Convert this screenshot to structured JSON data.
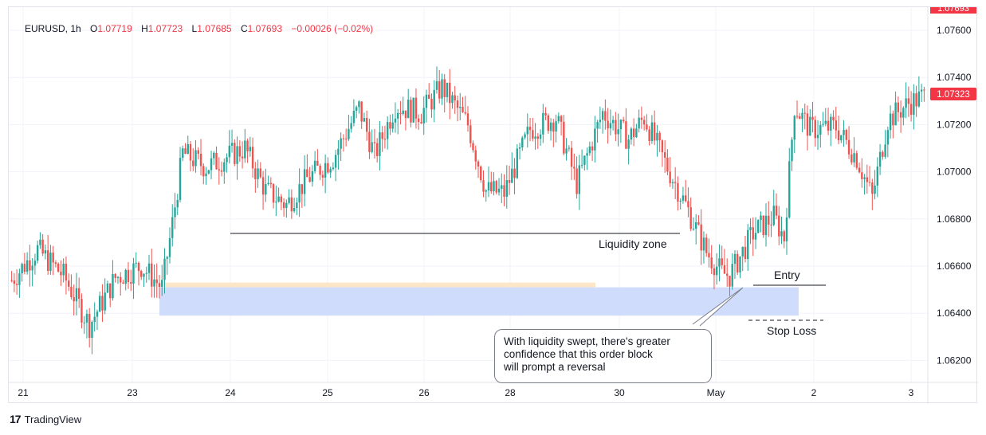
{
  "legend": {
    "symbol": "EURUSD",
    "interval": "1h",
    "o_label": "O",
    "o": "1.07719",
    "h_label": "H",
    "h": "1.07723",
    "l_label": "L",
    "l": "1.07685",
    "c_label": "C",
    "c": "1.07693",
    "change": "−0.00026 (−0.02%)"
  },
  "colors": {
    "up": "#26a69a",
    "down": "#ef5350",
    "zone_upper": "#fde5c7",
    "zone_lower": "#cfdcfb",
    "price_badge": "#f23645"
  },
  "annotations": {
    "liquidity_zone": "Liquidity zone",
    "entry": "Entry",
    "stop_loss": "Stop Loss",
    "callout": [
      "With liquidity swept, there's greater",
      "confidence that this order block",
      "will prompt a reversal"
    ]
  },
  "branding": {
    "logo_mark": "17",
    "name": "TradingView"
  },
  "chart_data": {
    "type": "candlestick",
    "title": "EURUSD, 1h",
    "ylim": [
      1.0618,
      1.0766
    ],
    "y_ticks": [
      "1.07600",
      "1.07400",
      "1.07200",
      "1.07000",
      "1.06800",
      "1.06600",
      "1.06400",
      "1.06200"
    ],
    "last_price": "1.07323",
    "top_badge": "1.07693",
    "x_ticks": [
      "21",
      "23",
      "24",
      "25",
      "26",
      "28",
      "30",
      "May",
      "2",
      "3"
    ],
    "levels": {
      "liquidity_zone": 1.0674,
      "order_block_upper": [
        1.0653,
        1.0651
      ],
      "order_block": [
        1.0651,
        1.0639
      ],
      "entry": 1.0652,
      "stop_loss": 1.0637
    },
    "path_keypoints": [
      [
        0,
        1.0654
      ],
      [
        10,
        1.0667
      ],
      [
        20,
        1.0656
      ],
      [
        30,
        1.0635
      ],
      [
        40,
        1.0655
      ],
      [
        50,
        1.066
      ],
      [
        58,
        1.0651
      ],
      [
        62,
        1.0678
      ],
      [
        66,
        1.0708
      ],
      [
        75,
        1.0702
      ],
      [
        90,
        1.071
      ],
      [
        98,
        1.0692
      ],
      [
        106,
        1.0686
      ],
      [
        114,
        1.0697
      ],
      [
        124,
        1.0706
      ],
      [
        134,
        1.0727
      ],
      [
        140,
        1.0707
      ],
      [
        148,
        1.0728
      ],
      [
        158,
        1.0725
      ],
      [
        166,
        1.0736
      ],
      [
        176,
        1.072
      ],
      [
        183,
        1.0692
      ],
      [
        190,
        1.0691
      ],
      [
        200,
        1.0718
      ],
      [
        210,
        1.0723
      ],
      [
        218,
        1.0695
      ],
      [
        228,
        1.0725
      ],
      [
        238,
        1.0714
      ],
      [
        244,
        1.0723
      ],
      [
        252,
        1.0704
      ],
      [
        260,
        1.0686
      ],
      [
        268,
        1.0666
      ],
      [
        274,
        1.0657
      ],
      [
        277,
        1.0656
      ],
      [
        286,
        1.0674
      ],
      [
        294,
        1.0681
      ],
      [
        298,
        1.0672
      ],
      [
        302,
        1.0728
      ],
      [
        308,
        1.0718
      ],
      [
        318,
        1.0719
      ],
      [
        326,
        1.0706
      ],
      [
        332,
        1.0689
      ],
      [
        338,
        1.0722
      ],
      [
        346,
        1.0729
      ],
      [
        352,
        1.0732
      ]
    ]
  }
}
